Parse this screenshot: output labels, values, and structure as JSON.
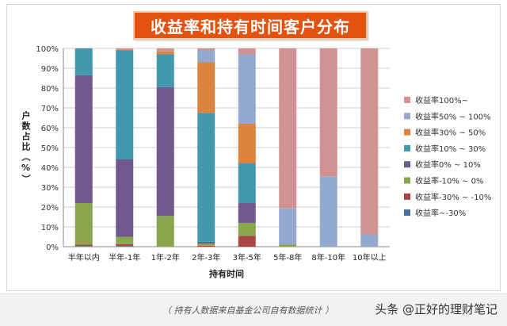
{
  "chart_data": {
    "type": "bar",
    "stacked": true,
    "title": "收益率和持有时间客户分布",
    "xlabel": "持有时间",
    "ylabel": "户数占比（%）",
    "ylim": [
      0,
      100
    ],
    "y_ticks": [
      "0%",
      "10%",
      "20%",
      "30%",
      "40%",
      "50%",
      "60%",
      "70%",
      "80%",
      "90%",
      "100%"
    ],
    "grid": true,
    "legend_position": "right",
    "categories": [
      "半年以内",
      "半年-1年",
      "1年-2年",
      "2年-3年",
      "3年-5年",
      "5年-8年",
      "8年-10年",
      "10年以上"
    ],
    "series": [
      {
        "name": "收益率~-30%",
        "color": "#4572a7",
        "values": [
          0.3,
          0.3,
          0,
          0,
          0,
          0,
          0,
          0
        ]
      },
      {
        "name": "收益率-30% ~ -10%",
        "color": "#aa4643",
        "values": [
          0.7,
          1,
          0,
          0.5,
          5.5,
          0,
          0,
          0
        ]
      },
      {
        "name": "收益率-10% ~ 0%",
        "color": "#89a54e",
        "values": [
          21,
          3.7,
          15.5,
          1,
          6.5,
          1,
          0,
          0
        ]
      },
      {
        "name": "收益率0% ~ 10%",
        "color": "#71588f",
        "values": [
          64.5,
          39,
          65,
          1,
          10,
          0,
          0,
          0
        ]
      },
      {
        "name": "收益率10% ~ 30%",
        "color": "#4198af",
        "values": [
          13.5,
          55,
          16.5,
          65,
          20,
          0,
          0,
          0
        ]
      },
      {
        "name": "收益率30% ~ 50%",
        "color": "#db843d",
        "values": [
          0,
          0.5,
          1.5,
          25.5,
          20,
          0,
          0,
          0
        ]
      },
      {
        "name": "收益率50% ~ 100%",
        "color": "#93a9cf",
        "values": [
          0,
          0,
          0,
          6,
          35,
          18.5,
          35.5,
          6
        ]
      },
      {
        "name": "收益率100%~",
        "color": "#d19392",
        "values": [
          0,
          0.5,
          1.5,
          1,
          3,
          80.5,
          64.5,
          94
        ]
      }
    ]
  },
  "footer": {
    "source_note": "（ 持有人数据来自基金公司自有数据统计 ）",
    "watermark": "头条 @正好的理财笔记"
  }
}
